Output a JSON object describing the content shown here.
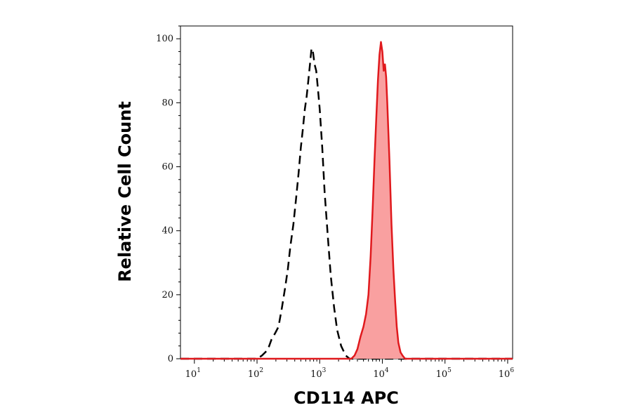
{
  "chart_data": {
    "type": "area",
    "title": "",
    "xlabel": "CD114 APC",
    "ylabel": "Relative Cell Count",
    "x_scale": "log",
    "xlim": [
      6,
      1200000
    ],
    "ylim": [
      0,
      104
    ],
    "x_ticks": [
      {
        "value": 10,
        "base": "10",
        "exp": "1"
      },
      {
        "value": 100,
        "base": "10",
        "exp": "2"
      },
      {
        "value": 1000,
        "base": "10",
        "exp": "3"
      },
      {
        "value": 10000,
        "base": "10",
        "exp": "4"
      },
      {
        "value": 100000,
        "base": "10",
        "exp": "5"
      },
      {
        "value": 1000000,
        "base": "10",
        "exp": "6"
      }
    ],
    "y_ticks": [
      "0",
      "20",
      "40",
      "60",
      "80",
      "100"
    ],
    "grid": false,
    "legend": "none",
    "series": [
      {
        "style": "dashed-black-unfilled",
        "color": "#000000",
        "x": [
          6,
          100,
          120,
          135,
          150,
          170,
          195,
          220,
          250,
          280,
          310,
          340,
          380,
          420,
          460,
          500,
          540,
          580,
          620,
          660,
          700,
          740,
          780,
          830,
          880,
          940,
          1000,
          1100,
          1200,
          1350,
          1500,
          1700,
          1900,
          2200,
          2600,
          3000,
          1200000
        ],
        "y": [
          0,
          0,
          1,
          2,
          3,
          6,
          8,
          10,
          16,
          22,
          28,
          35,
          42,
          50,
          58,
          66,
          72,
          78,
          82,
          87,
          92,
          97,
          96,
          92,
          90,
          84,
          78,
          66,
          52,
          38,
          26,
          16,
          9,
          4,
          1,
          0,
          0
        ]
      },
      {
        "style": "red-filled",
        "color": "#e0191d",
        "fill": "#f9a0a0",
        "x": [
          6,
          3200,
          3600,
          4000,
          4500,
          5000,
          5500,
          6000,
          6500,
          7000,
          7500,
          8000,
          8500,
          9000,
          9500,
          10000,
          10500,
          11000,
          11500,
          12000,
          13000,
          14000,
          15000,
          16000,
          17000,
          18000,
          19500,
          21000,
          23000,
          26000,
          1200000
        ],
        "y": [
          0,
          0,
          1,
          3,
          7,
          10,
          14,
          20,
          32,
          47,
          62,
          75,
          87,
          95,
          99,
          96,
          90,
          92,
          88,
          80,
          62,
          42,
          28,
          18,
          10,
          5,
          2,
          1,
          0,
          0,
          0
        ]
      }
    ]
  }
}
